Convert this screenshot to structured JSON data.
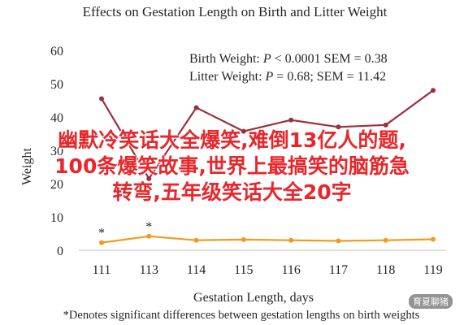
{
  "chart_data": {
    "type": "line",
    "title": "Effects on Gestation Length on Birth and Litter Weight",
    "xlabel": "Gestation Length, days",
    "ylabel": "Weight",
    "categories": [
      "111",
      "113",
      "114",
      "115",
      "116",
      "117",
      "118",
      "119"
    ],
    "yticks": [
      0,
      10,
      20,
      30,
      40,
      50,
      60
    ],
    "ylim": [
      0,
      60
    ],
    "grid": false,
    "series": [
      {
        "name": "Birth Weight",
        "color": "#9c2f3e",
        "values": [
          45.5,
          21.5,
          42.8,
          35.7,
          39.1,
          37.0,
          37.6,
          48.0
        ]
      },
      {
        "name": "Litter Weight",
        "color": "#f39a1e",
        "values": [
          2.3,
          4.2,
          3.0,
          3.2,
          3.0,
          2.8,
          3.0,
          3.3
        ]
      }
    ],
    "annotations": [
      {
        "text": "*",
        "category": "111"
      },
      {
        "text": "*",
        "category": "113"
      }
    ],
    "stats": [
      {
        "prefix": "Birth Weight: ",
        "p": "P",
        "rest": " < 0.0001 SEM = 0.38"
      },
      {
        "prefix": "Litter Weight: ",
        "p": "P",
        "rest": " = 0.68; SEM = 11.42"
      }
    ],
    "footnote": "*Denotes significant differences between gestation lengths on birth weights"
  },
  "overlay": {
    "line1": "幽默冷笑话大全爆笑,难倒13亿人的题,",
    "line2": "100条爆笑故事,世界上最搞笑的脑筋急",
    "line3": "转弯,五年级笑话大全20字"
  },
  "watermark": "育夏聊猪"
}
